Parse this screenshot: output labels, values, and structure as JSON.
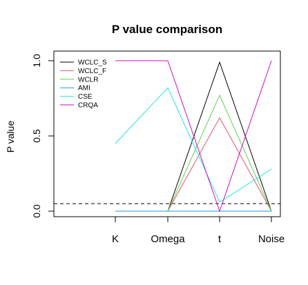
{
  "chart_data": {
    "type": "line",
    "title": "P value comparison",
    "xlabel": "",
    "ylabel": "P value",
    "categories": [
      "K",
      "Omega",
      "t",
      "Noise"
    ],
    "ylim": [
      0.0,
      1.0
    ],
    "y_ticks": [
      "0.0",
      "0.5",
      "1.0"
    ],
    "legend_position": "top-left",
    "reference_line": {
      "y": 0.05,
      "style": "dashed",
      "color": "#000000"
    },
    "series": [
      {
        "name": "WCLC_S",
        "color": "#000000",
        "values": [
          0.0,
          0.0,
          0.99,
          0.0
        ]
      },
      {
        "name": "WCLC_F",
        "color": "#DF536B",
        "values": [
          0.0,
          0.0,
          0.62,
          0.0
        ]
      },
      {
        "name": "WCLR",
        "color": "#61D04F",
        "values": [
          0.0,
          0.0,
          0.77,
          0.0
        ]
      },
      {
        "name": "AMI",
        "color": "#2297E6",
        "values": [
          0.0,
          0.0,
          0.0,
          0.0
        ]
      },
      {
        "name": "CSE",
        "color": "#28E2E5",
        "values": [
          0.45,
          0.82,
          0.06,
          0.28
        ]
      },
      {
        "name": "CRQA",
        "color": "#CD0BBC",
        "values": [
          1.0,
          1.0,
          0.0,
          1.0
        ]
      }
    ]
  }
}
